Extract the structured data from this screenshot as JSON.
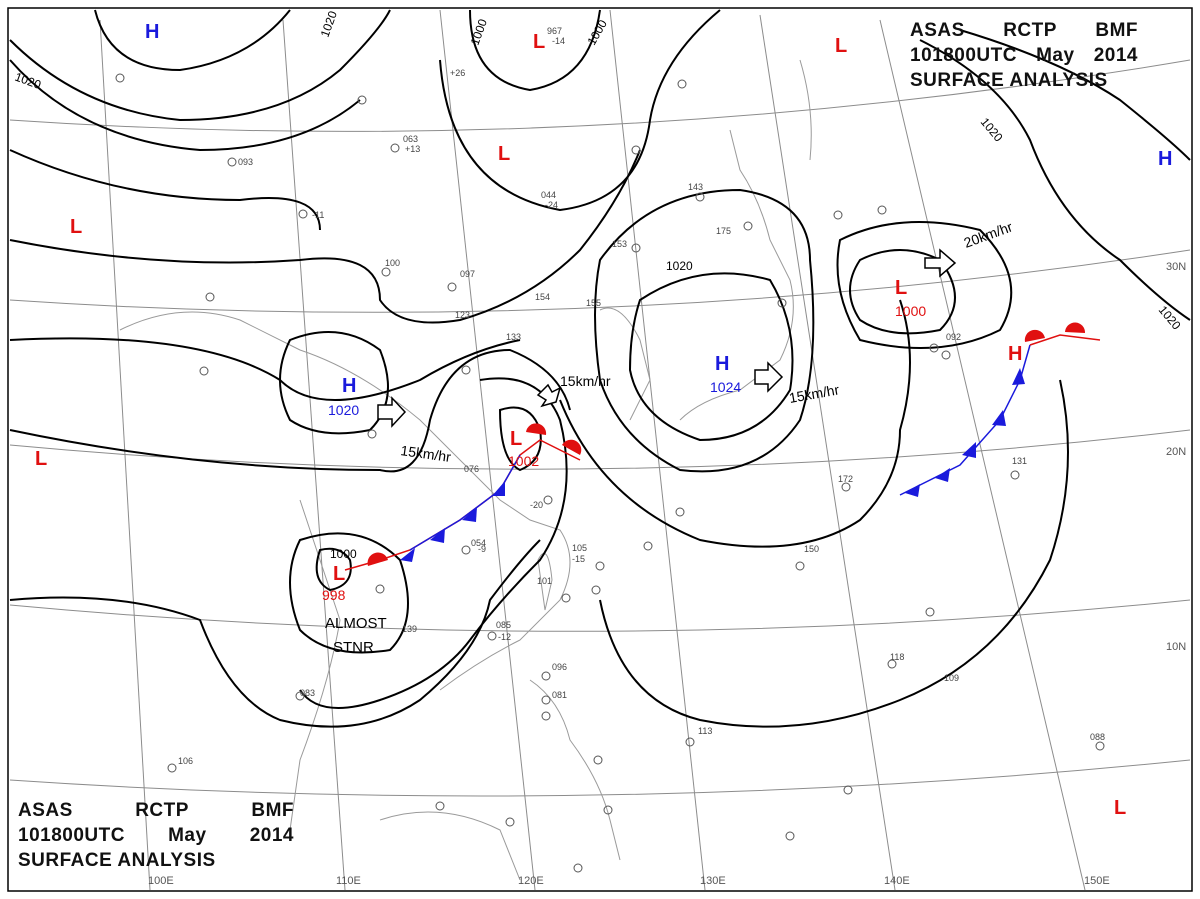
{
  "header": {
    "agency": "ASAS",
    "station": "RCTP",
    "office": "BMF",
    "datetime": "101800UTC",
    "month": "May",
    "year": "2014",
    "product": "SURFACE ANALYSIS"
  },
  "colors": {
    "high": "#1a1adc",
    "low": "#e01010",
    "isobar": "#000000",
    "graticule": "#8c8c8c",
    "coast": "#9a9a9a"
  },
  "longitudes": [
    "100E",
    "110E",
    "120E",
    "130E",
    "140E",
    "150E"
  ],
  "latitudes": [
    "30N",
    "20N",
    "10N"
  ],
  "pressure_systems": [
    {
      "type": "H",
      "value": ""
    },
    {
      "type": "L",
      "value": ""
    },
    {
      "type": "H",
      "value": ""
    },
    {
      "type": "L",
      "value": ""
    },
    {
      "type": "L",
      "value": ""
    },
    {
      "type": "H",
      "value": "1020"
    },
    {
      "type": "L",
      "value": ""
    },
    {
      "type": "L",
      "value": "1002"
    },
    {
      "type": "L",
      "value": "998"
    },
    {
      "type": "H",
      "value": "1024"
    },
    {
      "type": "L",
      "value": ""
    },
    {
      "type": "L",
      "value": "1000"
    },
    {
      "type": "H",
      "value": ""
    },
    {
      "type": "L",
      "value": ""
    }
  ],
  "isobar_labels": [
    "1020",
    "1000",
    "1000",
    "1020",
    "1020",
    "1020",
    "1020",
    "1000"
  ],
  "motion_labels": [
    "15km/hr",
    "15km/hr",
    "15km/hr",
    "20km/hr"
  ],
  "annotation": {
    "line1": "ALMOST",
    "line2": "STNR"
  },
  "station_values": [
    "967",
    "153",
    "133",
    "175",
    "101",
    "150",
    "172",
    "113",
    "105",
    "118",
    "109",
    "088",
    "096",
    "081",
    "106",
    "054",
    "085",
    "076",
    "139",
    "083",
    "097",
    "143",
    "154",
    "155",
    "123",
    "100",
    "093",
    "063",
    "044",
    "131",
    "092",
    "-14",
    "-24",
    "-15",
    "-11",
    "-20",
    "-12",
    "-9",
    "+26",
    "+13"
  ],
  "map_credit": "N"
}
